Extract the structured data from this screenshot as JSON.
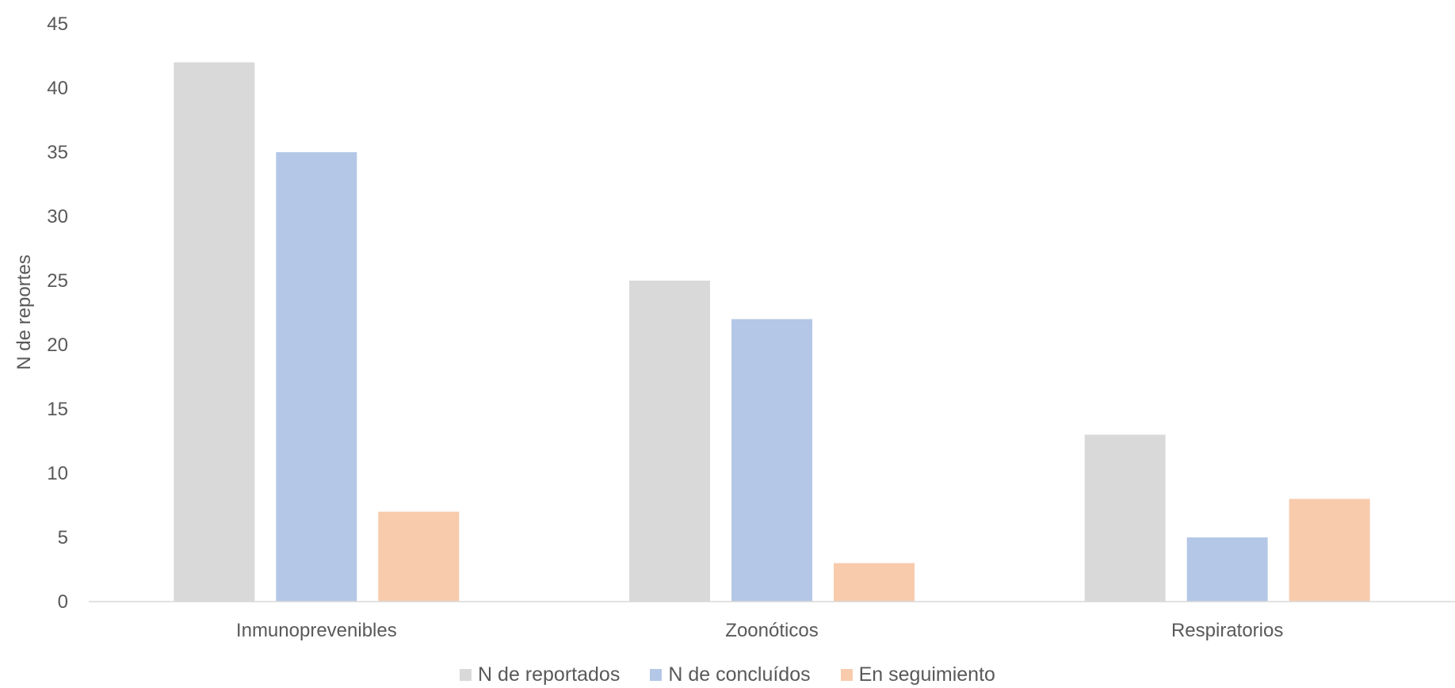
{
  "chart_data": {
    "type": "bar",
    "categories": [
      "Inmunoprevenibles",
      "Zoonóticos",
      "Respiratorios"
    ],
    "series": [
      {
        "name": "N de reportados",
        "values": [
          42,
          25,
          13
        ],
        "color": "#d9d9d9"
      },
      {
        "name": "N de concluídos",
        "values": [
          35,
          22,
          5
        ],
        "color": "#b4c7e7"
      },
      {
        "name": "En seguimiento",
        "values": [
          7,
          3,
          8
        ],
        "color": "#f8cbad"
      }
    ],
    "ylabel": "N de reportes",
    "ylim": [
      0,
      45
    ],
    "yticks": [
      0,
      5,
      10,
      15,
      20,
      25,
      30,
      35,
      40,
      45
    ],
    "grid": false,
    "legend": "bottom-center"
  }
}
